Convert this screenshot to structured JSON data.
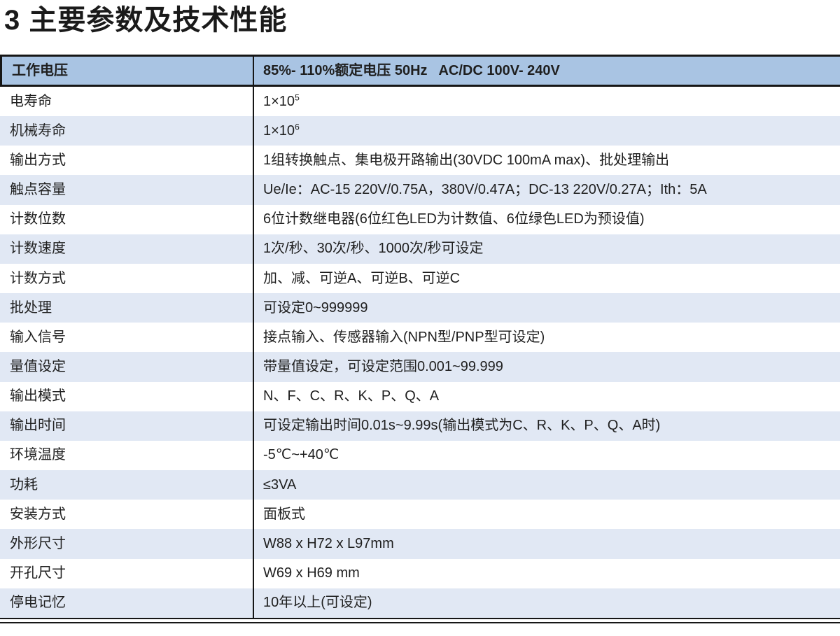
{
  "title": "3 主要参数及技术性能",
  "colors": {
    "header_bg": "#a9c4e3",
    "alt_row_bg": "#e1e8f4",
    "border_dark": "#161616",
    "text": "#1f1f1f"
  },
  "table": {
    "header": {
      "label": "工作电压",
      "value": "85%- 110%额定电压 50Hz   AC/DC 100V- 240V"
    },
    "rows": [
      {
        "label": "电寿命",
        "value": "1×10",
        "sup": "5"
      },
      {
        "label": "机械寿命",
        "value": "1×10",
        "sup": "6"
      },
      {
        "label": "输出方式",
        "value": "1组转换触点、集电极开路输出(30VDC 100mA max)、批处理输出"
      },
      {
        "label": "触点容量",
        "value": "Ue/Ie：AC-15 220V/0.75A，380V/0.47A；DC-13 220V/0.27A；Ith：5A"
      },
      {
        "label": "计数位数",
        "value": "6位计数继电器(6位红色LED为计数值、6位绿色LED为预设值)"
      },
      {
        "label": "计数速度",
        "value": "1次/秒、30次/秒、1000次/秒可设定"
      },
      {
        "label": "计数方式",
        "value": "加、减、可逆A、可逆B、可逆C"
      },
      {
        "label": "批处理",
        "value": "可设定0~999999"
      },
      {
        "label": "输入信号",
        "value": "接点输入、传感器输入(NPN型/PNP型可设定)"
      },
      {
        "label": "量值设定",
        "value": "带量值设定，可设定范围0.001~99.999"
      },
      {
        "label": "输出模式",
        "value": "N、F、C、R、K、P、Q、A"
      },
      {
        "label": "输出时间",
        "value": "可设定输出时间0.01s~9.99s(输出模式为C、R、K、P、Q、A时)"
      },
      {
        "label": "环境温度",
        "value": "-5℃~+40℃"
      },
      {
        "label": "功耗",
        "value": "≤3VA"
      },
      {
        "label": "安装方式",
        "value": "面板式"
      },
      {
        "label": "外形尺寸",
        "value": "W88 x H72 x L97mm"
      },
      {
        "label": "开孔尺寸",
        "value": "W69 x H69 mm"
      },
      {
        "label": "停电记忆",
        "value": "10年以上(可设定)"
      }
    ]
  }
}
